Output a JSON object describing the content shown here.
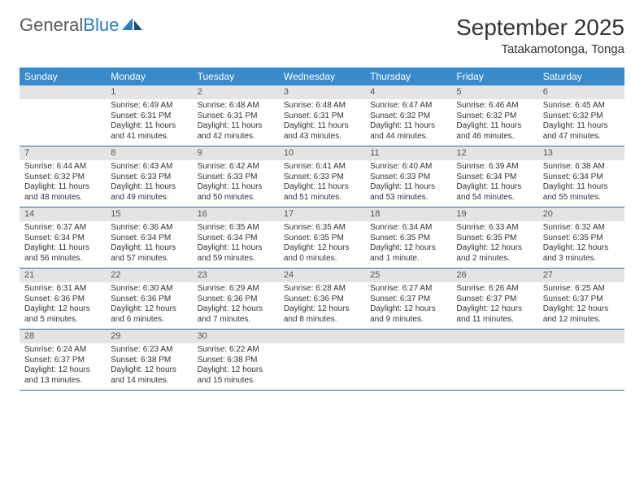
{
  "brand": {
    "part1": "General",
    "part2": "Blue"
  },
  "title": "September 2025",
  "location": "Tatakamotonga, Tonga",
  "colors": {
    "header_bg": "#3a8ac9",
    "header_text": "#ffffff",
    "daynum_bg": "#e4e4e4",
    "daynum_text": "#555555",
    "body_text": "#333333",
    "rule": "#2f6fa0",
    "logo_gray": "#5a5a5a",
    "logo_blue": "#2a7ec5"
  },
  "day_names": [
    "Sunday",
    "Monday",
    "Tuesday",
    "Wednesday",
    "Thursday",
    "Friday",
    "Saturday"
  ],
  "weeks": [
    [
      {
        "n": "",
        "sr": "",
        "ss": "",
        "dl1": "",
        "dl2": ""
      },
      {
        "n": "1",
        "sr": "Sunrise: 6:49 AM",
        "ss": "Sunset: 6:31 PM",
        "dl1": "Daylight: 11 hours",
        "dl2": "and 41 minutes."
      },
      {
        "n": "2",
        "sr": "Sunrise: 6:48 AM",
        "ss": "Sunset: 6:31 PM",
        "dl1": "Daylight: 11 hours",
        "dl2": "and 42 minutes."
      },
      {
        "n": "3",
        "sr": "Sunrise: 6:48 AM",
        "ss": "Sunset: 6:31 PM",
        "dl1": "Daylight: 11 hours",
        "dl2": "and 43 minutes."
      },
      {
        "n": "4",
        "sr": "Sunrise: 6:47 AM",
        "ss": "Sunset: 6:32 PM",
        "dl1": "Daylight: 11 hours",
        "dl2": "and 44 minutes."
      },
      {
        "n": "5",
        "sr": "Sunrise: 6:46 AM",
        "ss": "Sunset: 6:32 PM",
        "dl1": "Daylight: 11 hours",
        "dl2": "and 46 minutes."
      },
      {
        "n": "6",
        "sr": "Sunrise: 6:45 AM",
        "ss": "Sunset: 6:32 PM",
        "dl1": "Daylight: 11 hours",
        "dl2": "and 47 minutes."
      }
    ],
    [
      {
        "n": "7",
        "sr": "Sunrise: 6:44 AM",
        "ss": "Sunset: 6:32 PM",
        "dl1": "Daylight: 11 hours",
        "dl2": "and 48 minutes."
      },
      {
        "n": "8",
        "sr": "Sunrise: 6:43 AM",
        "ss": "Sunset: 6:33 PM",
        "dl1": "Daylight: 11 hours",
        "dl2": "and 49 minutes."
      },
      {
        "n": "9",
        "sr": "Sunrise: 6:42 AM",
        "ss": "Sunset: 6:33 PM",
        "dl1": "Daylight: 11 hours",
        "dl2": "and 50 minutes."
      },
      {
        "n": "10",
        "sr": "Sunrise: 6:41 AM",
        "ss": "Sunset: 6:33 PM",
        "dl1": "Daylight: 11 hours",
        "dl2": "and 51 minutes."
      },
      {
        "n": "11",
        "sr": "Sunrise: 6:40 AM",
        "ss": "Sunset: 6:33 PM",
        "dl1": "Daylight: 11 hours",
        "dl2": "and 53 minutes."
      },
      {
        "n": "12",
        "sr": "Sunrise: 6:39 AM",
        "ss": "Sunset: 6:34 PM",
        "dl1": "Daylight: 11 hours",
        "dl2": "and 54 minutes."
      },
      {
        "n": "13",
        "sr": "Sunrise: 6:38 AM",
        "ss": "Sunset: 6:34 PM",
        "dl1": "Daylight: 11 hours",
        "dl2": "and 55 minutes."
      }
    ],
    [
      {
        "n": "14",
        "sr": "Sunrise: 6:37 AM",
        "ss": "Sunset: 6:34 PM",
        "dl1": "Daylight: 11 hours",
        "dl2": "and 56 minutes."
      },
      {
        "n": "15",
        "sr": "Sunrise: 6:36 AM",
        "ss": "Sunset: 6:34 PM",
        "dl1": "Daylight: 11 hours",
        "dl2": "and 57 minutes."
      },
      {
        "n": "16",
        "sr": "Sunrise: 6:35 AM",
        "ss": "Sunset: 6:34 PM",
        "dl1": "Daylight: 11 hours",
        "dl2": "and 59 minutes."
      },
      {
        "n": "17",
        "sr": "Sunrise: 6:35 AM",
        "ss": "Sunset: 6:35 PM",
        "dl1": "Daylight: 12 hours",
        "dl2": "and 0 minutes."
      },
      {
        "n": "18",
        "sr": "Sunrise: 6:34 AM",
        "ss": "Sunset: 6:35 PM",
        "dl1": "Daylight: 12 hours",
        "dl2": "and 1 minute."
      },
      {
        "n": "19",
        "sr": "Sunrise: 6:33 AM",
        "ss": "Sunset: 6:35 PM",
        "dl1": "Daylight: 12 hours",
        "dl2": "and 2 minutes."
      },
      {
        "n": "20",
        "sr": "Sunrise: 6:32 AM",
        "ss": "Sunset: 6:35 PM",
        "dl1": "Daylight: 12 hours",
        "dl2": "and 3 minutes."
      }
    ],
    [
      {
        "n": "21",
        "sr": "Sunrise: 6:31 AM",
        "ss": "Sunset: 6:36 PM",
        "dl1": "Daylight: 12 hours",
        "dl2": "and 5 minutes."
      },
      {
        "n": "22",
        "sr": "Sunrise: 6:30 AM",
        "ss": "Sunset: 6:36 PM",
        "dl1": "Daylight: 12 hours",
        "dl2": "and 6 minutes."
      },
      {
        "n": "23",
        "sr": "Sunrise: 6:29 AM",
        "ss": "Sunset: 6:36 PM",
        "dl1": "Daylight: 12 hours",
        "dl2": "and 7 minutes."
      },
      {
        "n": "24",
        "sr": "Sunrise: 6:28 AM",
        "ss": "Sunset: 6:36 PM",
        "dl1": "Daylight: 12 hours",
        "dl2": "and 8 minutes."
      },
      {
        "n": "25",
        "sr": "Sunrise: 6:27 AM",
        "ss": "Sunset: 6:37 PM",
        "dl1": "Daylight: 12 hours",
        "dl2": "and 9 minutes."
      },
      {
        "n": "26",
        "sr": "Sunrise: 6:26 AM",
        "ss": "Sunset: 6:37 PM",
        "dl1": "Daylight: 12 hours",
        "dl2": "and 11 minutes."
      },
      {
        "n": "27",
        "sr": "Sunrise: 6:25 AM",
        "ss": "Sunset: 6:37 PM",
        "dl1": "Daylight: 12 hours",
        "dl2": "and 12 minutes."
      }
    ],
    [
      {
        "n": "28",
        "sr": "Sunrise: 6:24 AM",
        "ss": "Sunset: 6:37 PM",
        "dl1": "Daylight: 12 hours",
        "dl2": "and 13 minutes."
      },
      {
        "n": "29",
        "sr": "Sunrise: 6:23 AM",
        "ss": "Sunset: 6:38 PM",
        "dl1": "Daylight: 12 hours",
        "dl2": "and 14 minutes."
      },
      {
        "n": "30",
        "sr": "Sunrise: 6:22 AM",
        "ss": "Sunset: 6:38 PM",
        "dl1": "Daylight: 12 hours",
        "dl2": "and 15 minutes."
      },
      {
        "n": "",
        "sr": "",
        "ss": "",
        "dl1": "",
        "dl2": ""
      },
      {
        "n": "",
        "sr": "",
        "ss": "",
        "dl1": "",
        "dl2": ""
      },
      {
        "n": "",
        "sr": "",
        "ss": "",
        "dl1": "",
        "dl2": ""
      },
      {
        "n": "",
        "sr": "",
        "ss": "",
        "dl1": "",
        "dl2": ""
      }
    ]
  ]
}
